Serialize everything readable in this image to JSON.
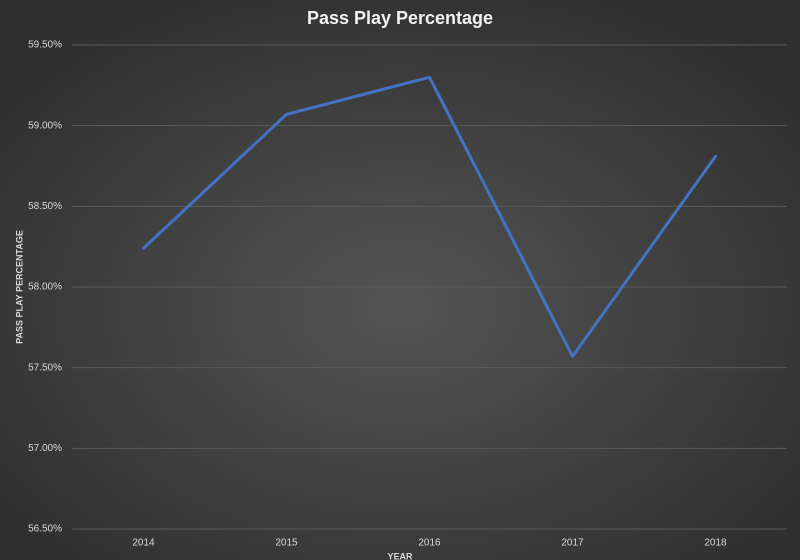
{
  "chart_data": {
    "type": "line",
    "title": "Pass Play Percentage",
    "x_label": "YEAR",
    "y_label": "PASS PLAY PERCENTAGE",
    "categories": [
      "2014",
      "2015",
      "2016",
      "2017",
      "2018"
    ],
    "series": [
      {
        "name": "Pass Play Percentage",
        "color": "#4472c4",
        "values": [
          58.24,
          59.07,
          59.3,
          57.57,
          58.81
        ]
      }
    ],
    "ylim": [
      56.5,
      59.5
    ],
    "yticks": [
      {
        "value": 56.5,
        "label": "56.50%"
      },
      {
        "value": 57,
        "label": "57.00%"
      },
      {
        "value": 57.5,
        "label": "57.50%"
      },
      {
        "value": 58,
        "label": "58.00%"
      },
      {
        "value": 58.5,
        "label": "58.50%"
      },
      {
        "value": 59,
        "label": "59.00%"
      },
      {
        "value": 59.5,
        "label": "59.50%"
      }
    ],
    "grid": true
  }
}
